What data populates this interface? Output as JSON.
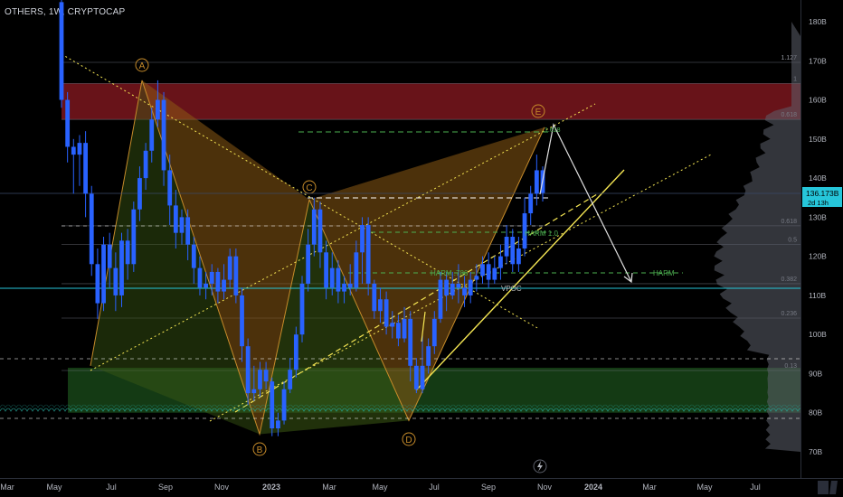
{
  "header": {
    "symbol": "OTHERS",
    "interval": "1W",
    "exchange": "CRYPTOCAP"
  },
  "colors": {
    "up": "#2962ff",
    "down": "#2962ff",
    "pattern_fill": "#8a5a14",
    "pattern_fill_2": "#3c5a14",
    "supply_zone": "#8b1a22",
    "demand_zone": "#1b4d1b",
    "price_line": "#26c6da",
    "fib_line": "#787b86",
    "trend": "#f5e653",
    "projection": "#e0e0e0"
  },
  "chart_data": {
    "type": "candlestick",
    "title": "OTHERS, 1W, CRYPTOCAP",
    "x_tick_labels": [
      "Mar",
      "May",
      "Jul",
      "Sep",
      "Nov",
      "2023",
      "Mar",
      "May",
      "Jul",
      "Sep",
      "Nov",
      "2024",
      "Mar",
      "May",
      "Jul"
    ],
    "y_tick_labels": [
      "180B",
      "170B",
      "160B",
      "150B",
      "140B",
      "130B",
      "120B",
      "110B",
      "100B",
      "90B",
      "80B",
      "70B"
    ],
    "ylim": [
      67,
      185
    ],
    "last_price": {
      "label": "136.173B",
      "value": 136.173,
      "countdown": "2d 13h"
    },
    "fib_levels": [
      {
        "ratio": "1.127",
        "value": 169.6
      },
      {
        "ratio": "1",
        "value": 164.2
      },
      {
        "ratio": "0.618",
        "value": 155
      },
      {
        "ratio": "0.5",
        "value": 123.0
      },
      {
        "ratio": "0.618",
        "value": 127.8
      },
      {
        "ratio": "0.382",
        "value": 113.0
      },
      {
        "ratio": "0.236",
        "value": 104.2
      },
      {
        "ratio": "0.13",
        "value": 90.8
      }
    ],
    "pattern_points": [
      {
        "label": "A",
        "value": 165
      },
      {
        "label": "B",
        "value": 74.5
      },
      {
        "label": "C",
        "value": 134.5
      },
      {
        "label": "D",
        "value": 78
      },
      {
        "label": "E",
        "value": 153
      }
    ],
    "annotations": [
      "HARM 1.0",
      "HARM .786",
      "HARM",
      "VPOC",
      "1.618"
    ],
    "series": [
      {
        "values": [
          [
            185,
            160,
            186,
            158
          ],
          [
            160,
            148,
            162,
            144
          ],
          [
            148,
            146,
            150,
            136
          ],
          [
            146,
            149,
            151,
            138
          ],
          [
            149,
            136,
            152,
            130
          ],
          [
            136,
            118,
            138,
            115
          ],
          [
            118,
            108,
            122,
            104
          ],
          [
            108,
            123,
            125,
            106
          ],
          [
            123,
            117,
            126,
            112
          ],
          [
            117,
            110,
            121,
            106
          ],
          [
            110,
            124,
            126,
            107
          ],
          [
            124,
            118,
            127,
            114
          ],
          [
            118,
            132,
            134,
            116
          ],
          [
            132,
            140,
            143,
            129
          ],
          [
            140,
            147,
            149,
            137
          ],
          [
            147,
            155,
            158,
            144
          ],
          [
            155,
            160,
            165,
            153
          ],
          [
            160,
            142,
            162,
            138
          ],
          [
            142,
            133,
            146,
            128
          ],
          [
            133,
            126,
            137,
            122
          ],
          [
            126,
            130,
            132,
            123
          ],
          [
            130,
            123,
            132,
            119
          ],
          [
            123,
            117,
            125,
            113
          ],
          [
            117,
            112,
            120,
            110
          ],
          [
            112,
            113,
            116,
            109
          ],
          [
            113,
            116,
            118,
            110
          ],
          [
            116,
            111,
            117,
            108
          ],
          [
            111,
            114,
            118,
            109
          ],
          [
            114,
            120,
            122,
            112
          ],
          [
            120,
            110,
            122,
            108
          ],
          [
            110,
            97,
            112,
            93
          ],
          [
            97,
            85,
            99,
            82
          ],
          [
            85,
            86,
            92,
            83
          ],
          [
            86,
            91,
            93,
            84
          ],
          [
            91,
            88,
            93,
            86
          ],
          [
            88,
            76,
            89,
            74
          ],
          [
            76,
            78,
            80,
            74
          ],
          [
            78,
            86,
            88,
            77
          ],
          [
            86,
            91,
            94,
            85
          ],
          [
            91,
            100,
            102,
            89
          ],
          [
            100,
            113,
            115,
            98
          ],
          [
            113,
            123,
            127,
            111
          ],
          [
            123,
            132,
            135,
            120
          ],
          [
            132,
            121,
            134,
            117
          ],
          [
            121,
            112,
            124,
            109
          ],
          [
            112,
            117,
            121,
            110
          ],
          [
            117,
            111,
            119,
            108
          ],
          [
            111,
            113,
            115,
            108
          ],
          [
            113,
            112,
            118,
            110
          ],
          [
            112,
            121,
            124,
            111
          ],
          [
            121,
            128,
            130,
            113
          ],
          [
            128,
            113,
            130,
            110
          ],
          [
            113,
            106,
            114,
            104
          ],
          [
            106,
            109,
            112,
            103
          ],
          [
            109,
            102,
            111,
            100
          ],
          [
            102,
            103,
            106,
            99
          ],
          [
            103,
            99,
            105,
            97
          ],
          [
            99,
            104,
            107,
            98
          ],
          [
            104,
            92,
            106,
            88
          ],
          [
            92,
            86,
            94,
            85
          ],
          [
            86,
            92,
            100,
            85
          ],
          [
            92,
            97,
            99,
            90
          ],
          [
            97,
            104,
            106,
            95
          ],
          [
            104,
            114,
            116,
            103
          ],
          [
            114,
            110,
            116,
            106
          ],
          [
            110,
            113,
            116,
            109
          ],
          [
            113,
            112,
            118,
            108
          ],
          [
            112,
            110,
            115,
            107
          ],
          [
            110,
            114,
            116,
            108
          ],
          [
            114,
            115,
            118,
            111
          ],
          [
            115,
            118,
            120,
            113
          ],
          [
            118,
            114,
            121,
            112
          ],
          [
            114,
            117,
            120,
            113
          ],
          [
            117,
            120,
            123,
            114
          ],
          [
            120,
            125,
            128,
            118
          ],
          [
            125,
            118,
            127,
            116
          ],
          [
            118,
            122,
            125,
            116
          ],
          [
            122,
            131,
            135,
            120
          ],
          [
            131,
            136,
            138,
            128
          ],
          [
            136,
            142,
            146,
            133
          ],
          [
            142,
            136.2,
            143,
            134
          ]
        ]
      }
    ]
  }
}
